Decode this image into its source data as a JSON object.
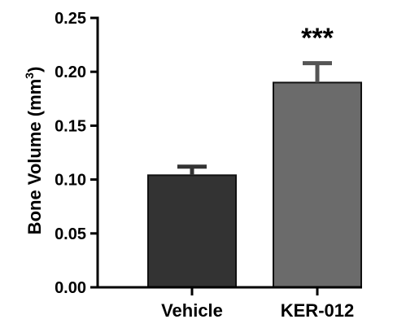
{
  "chart_data": {
    "type": "bar",
    "categories": [
      "Vehicle",
      "KER-012"
    ],
    "values": [
      0.104,
      0.19
    ],
    "error_upper": [
      0.112,
      0.208
    ],
    "ylabel": "Bone Volume (mm",
    "ylabel_sup": "3",
    "ylabel_close": ")",
    "ylim": [
      0,
      0.25
    ],
    "yticks": [
      "0.00",
      "0.05",
      "0.10",
      "0.15",
      "0.20",
      "0.25"
    ],
    "annotations": [
      {
        "category": "KER-012",
        "text": "***"
      }
    ],
    "colors": [
      "#333333",
      "#6b6b6b"
    ],
    "grid": false,
    "legend": "none"
  }
}
